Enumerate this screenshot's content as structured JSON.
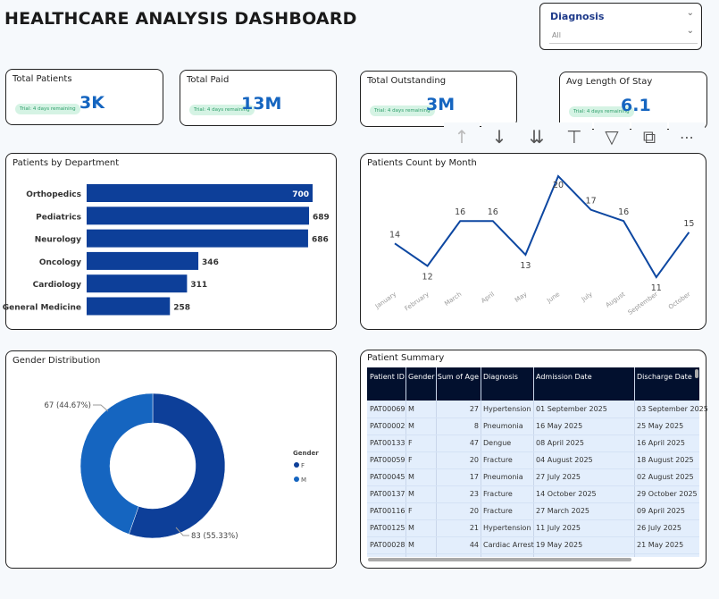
{
  "title": "HEALTHCARE ANALYSIS DASHBOARD",
  "slicer": {
    "label": "Diagnosis",
    "value": "All"
  },
  "kpis": [
    {
      "label": "Total Patients",
      "value": "3K",
      "badge": "Trial: 4 days remaining"
    },
    {
      "label": "Total Paid",
      "value": "13M",
      "badge": "Trial: 4 days remaining"
    },
    {
      "label": "Total Outstanding",
      "value": "3M",
      "badge": "Trial: 4 days remaining"
    },
    {
      "label": "Avg Length Of Stay",
      "value": "6.1",
      "badge": "Trial: 4 days remaining"
    }
  ],
  "toolbar": {
    "icons": [
      "arrow-up-icon",
      "arrow-down-icon",
      "double-arrow-down-icon",
      "expand-hierarchy-icon",
      "filter-icon",
      "focus-mode-icon",
      "more-options-icon"
    ]
  },
  "colors": {
    "accent": "#1565c0",
    "bar": "#0d3f99",
    "line": "#0d47a1",
    "header": "#02102e",
    "row": "#e3eefc"
  },
  "chart_data": [
    {
      "type": "bar",
      "title": "Patients by Department",
      "categories": [
        "Orthopedics",
        "Pediatrics",
        "Neurology",
        "Oncology",
        "Cardiology",
        "General Medicine"
      ],
      "values": [
        700,
        689,
        686,
        346,
        311,
        258
      ],
      "orientation": "horizontal"
    },
    {
      "type": "line",
      "title": "Patients Count by Month",
      "categories": [
        "January",
        "February",
        "March",
        "April",
        "May",
        "June",
        "July",
        "August",
        "September",
        "October"
      ],
      "values": [
        14,
        12,
        16,
        16,
        13,
        20,
        17,
        16,
        11,
        15
      ]
    },
    {
      "type": "pie",
      "title": "Gender Distribution",
      "legend_title": "Gender",
      "categories": [
        "F",
        "M"
      ],
      "values": [
        83,
        67
      ],
      "labels": [
        "83 (55.33%)",
        "67 (44.67%)"
      ],
      "colors": [
        "#0d3f99",
        "#1565c0"
      ],
      "donut": true,
      "legend": "right"
    }
  ],
  "table": {
    "title": "Patient Summary",
    "columns": [
      "Patient ID",
      "Gender",
      "Sum of Age",
      "Diagnosis",
      "Admission Date",
      "Discharge Date"
    ],
    "rows": [
      [
        "PAT00069",
        "M",
        "27",
        "Hypertension",
        "01 September 2025",
        "03 September 2025"
      ],
      [
        "PAT00002",
        "M",
        "8",
        "Pneumonia",
        "16 May 2025",
        "25 May 2025"
      ],
      [
        "PAT00133",
        "F",
        "47",
        "Dengue",
        "08 April 2025",
        "16 April 2025"
      ],
      [
        "PAT00059",
        "F",
        "20",
        "Fracture",
        "04 August 2025",
        "18 August 2025"
      ],
      [
        "PAT00045",
        "M",
        "17",
        "Pneumonia",
        "27 July 2025",
        "02 August 2025"
      ],
      [
        "PAT00137",
        "M",
        "23",
        "Fracture",
        "14 October 2025",
        "29 October 2025"
      ],
      [
        "PAT00116",
        "F",
        "20",
        "Fracture",
        "27 March 2025",
        "09 April 2025"
      ],
      [
        "PAT00125",
        "M",
        "21",
        "Hypertension",
        "11 July 2025",
        "26 July 2025"
      ],
      [
        "PAT00028",
        "M",
        "44",
        "Cardiac Arrest",
        "19 May 2025",
        "21 May 2025"
      ]
    ]
  }
}
